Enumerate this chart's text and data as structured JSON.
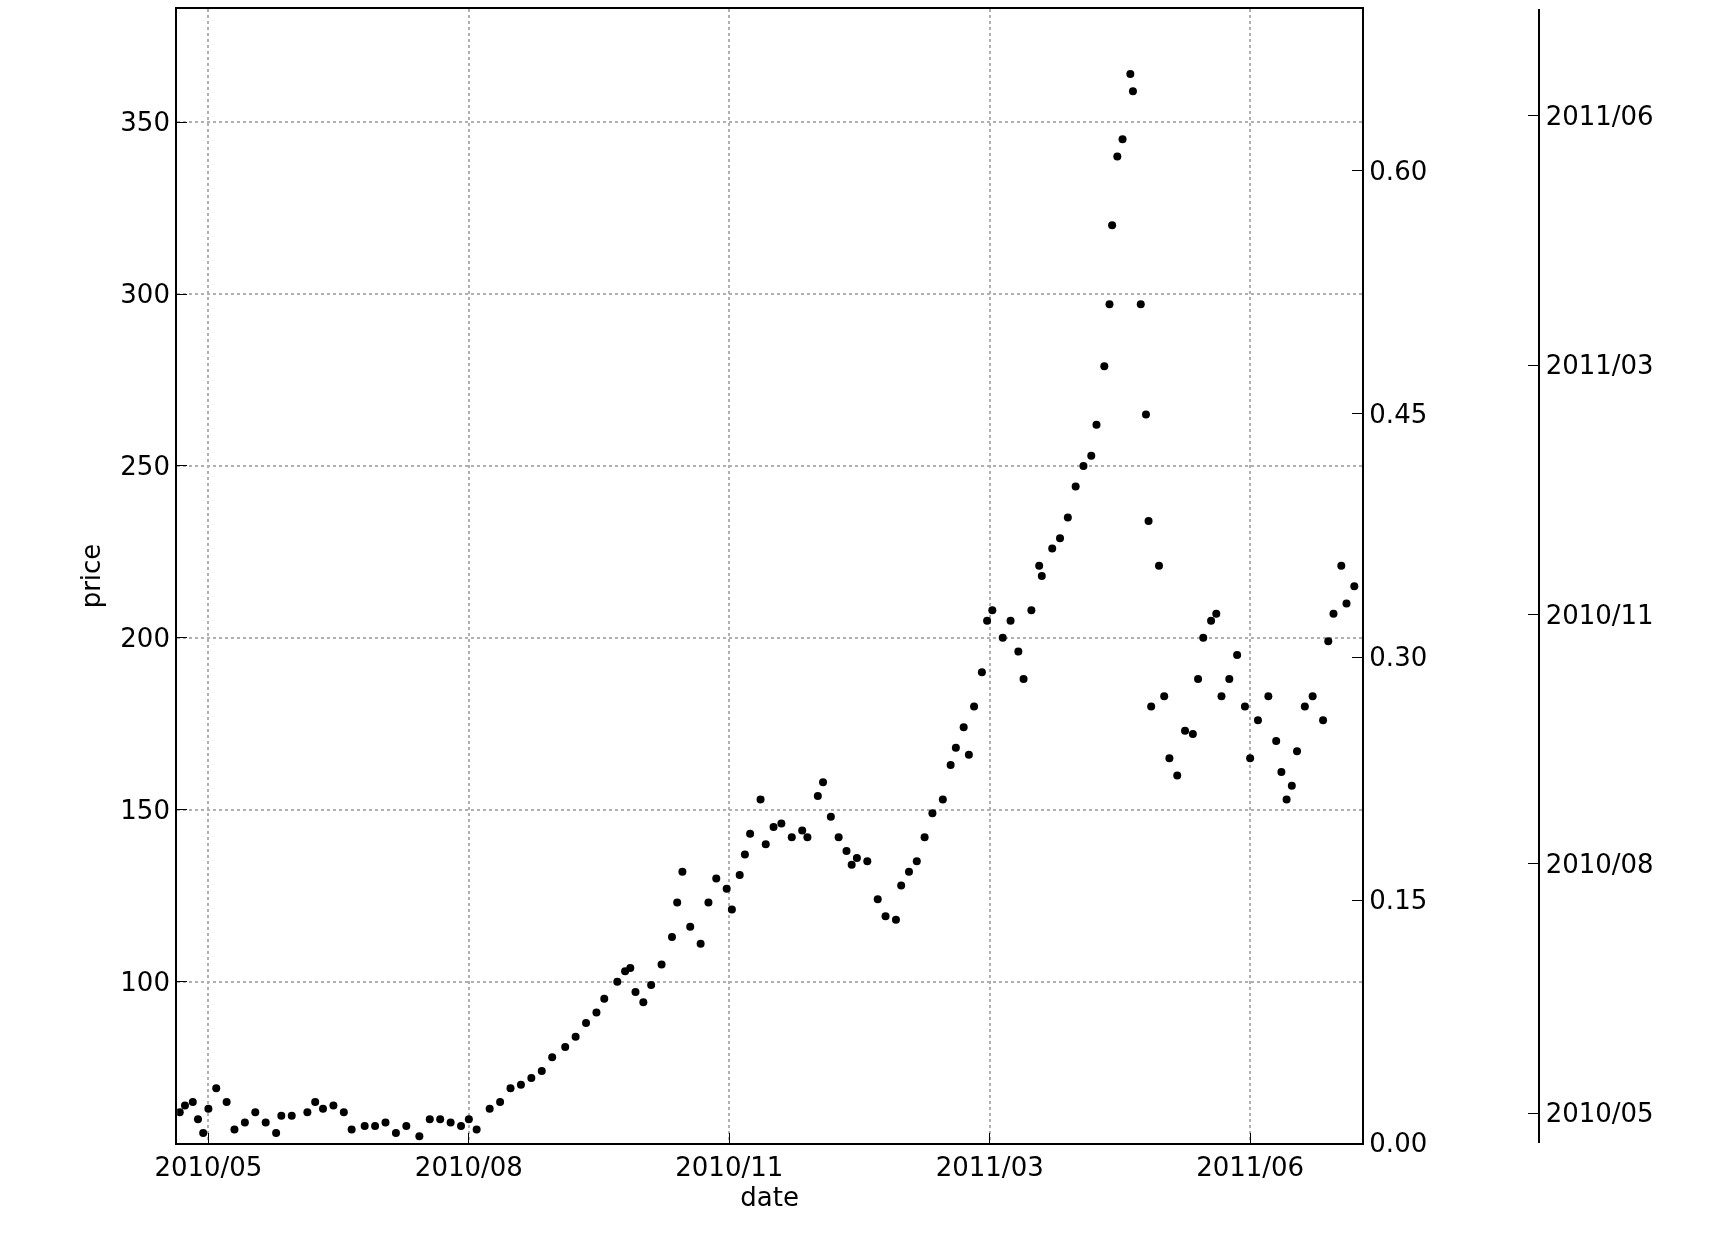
{
  "chart_data": {
    "type": "scatter",
    "xlabel": "date",
    "ylabel": "price",
    "xlim": [
      "2010-04-26",
      "2011-07-25"
    ],
    "xticks": [
      {
        "value": "2010-05-08",
        "label": "2010/05"
      },
      {
        "value": "2010-08-16",
        "label": "2010/08"
      },
      {
        "value": "2010-11-24",
        "label": "2010/11"
      },
      {
        "value": "2011-03-04",
        "label": "2011/03"
      },
      {
        "value": "2011-06-12",
        "label": "2011/06"
      }
    ],
    "ylim": [
      53,
      383
    ],
    "yticks": [
      100,
      150,
      200,
      250,
      300,
      350
    ],
    "y2lim": [
      0,
      0.7
    ],
    "y2ticks": [
      {
        "value": 0,
        "label": "0.00"
      },
      {
        "value": 0.15,
        "label": "0.15"
      },
      {
        "value": 0.3,
        "label": "0.30"
      },
      {
        "value": 0.45,
        "label": "0.45"
      },
      {
        "value": 0.6,
        "label": "0.60"
      }
    ],
    "y3lim": [
      "2010-04-26",
      "2011-07-25"
    ],
    "y3ticks": [
      {
        "value": "2010-05-08",
        "label": "2010/05"
      },
      {
        "value": "2010-08-16",
        "label": "2010/08"
      },
      {
        "value": "2010-11-24",
        "label": "2010/11"
      },
      {
        "value": "2011-03-04",
        "label": "2011/03"
      },
      {
        "value": "2011-06-12",
        "label": "2011/06"
      }
    ],
    "grid": true,
    "marker": "circle",
    "legend": false,
    "series": [
      {
        "color": "#000000",
        "x": [
          "2010-04-27",
          "2010-04-29",
          "2010-05-02",
          "2010-05-04",
          "2010-05-06",
          "2010-05-08",
          "2010-05-11",
          "2010-05-15",
          "2010-05-18",
          "2010-05-22",
          "2010-05-26",
          "2010-05-30",
          "2010-06-03",
          "2010-06-05",
          "2010-06-09",
          "2010-06-15",
          "2010-06-18",
          "2010-06-21",
          "2010-06-25",
          "2010-06-29",
          "2010-07-02",
          "2010-07-07",
          "2010-07-11",
          "2010-07-15",
          "2010-07-19",
          "2010-07-23",
          "2010-07-28",
          "2010-08-01",
          "2010-08-05",
          "2010-08-09",
          "2010-08-13",
          "2010-08-16",
          "2010-08-19",
          "2010-08-24",
          "2010-08-28",
          "2010-09-01",
          "2010-09-05",
          "2010-09-09",
          "2010-09-13",
          "2010-09-17",
          "2010-09-22",
          "2010-09-26",
          "2010-09-30",
          "2010-10-04",
          "2010-10-07",
          "2010-10-12",
          "2010-10-15",
          "2010-10-17",
          "2010-10-19",
          "2010-10-22",
          "2010-10-25",
          "2010-10-29",
          "2010-11-02",
          "2010-11-04",
          "2010-11-06",
          "2010-11-09",
          "2010-11-13",
          "2010-11-16",
          "2010-11-19",
          "2010-11-23",
          "2010-11-25",
          "2010-11-28",
          "2010-11-30",
          "2010-12-02",
          "2010-12-06",
          "2010-12-08",
          "2010-12-11",
          "2010-12-14",
          "2010-12-18",
          "2010-12-22",
          "2010-12-24",
          "2010-12-28",
          "2010-12-30",
          "2011-01-02",
          "2011-01-05",
          "2011-01-08",
          "2011-01-10",
          "2011-01-12",
          "2011-01-16",
          "2011-01-20",
          "2011-01-23",
          "2011-01-27",
          "2011-01-29",
          "2011-02-01",
          "2011-02-04",
          "2011-02-07",
          "2011-02-10",
          "2011-02-14",
          "2011-02-17",
          "2011-02-19",
          "2011-02-22",
          "2011-02-24",
          "2011-02-26",
          "2011-03-01",
          "2011-03-03",
          "2011-03-05",
          "2011-03-09",
          "2011-03-12",
          "2011-03-15",
          "2011-03-17",
          "2011-03-20",
          "2011-03-23",
          "2011-03-24",
          "2011-03-28",
          "2011-03-31",
          "2011-04-03",
          "2011-04-06",
          "2011-04-09",
          "2011-04-12",
          "2011-04-14",
          "2011-04-17",
          "2011-04-19",
          "2011-04-20",
          "2011-04-22",
          "2011-04-24",
          "2011-04-27",
          "2011-04-28",
          "2011-05-01",
          "2011-05-03",
          "2011-05-04",
          "2011-05-05",
          "2011-05-08",
          "2011-05-10",
          "2011-05-12",
          "2011-05-15",
          "2011-05-18",
          "2011-05-21",
          "2011-05-23",
          "2011-05-25",
          "2011-05-28",
          "2011-05-30",
          "2011-06-01",
          "2011-06-04",
          "2011-06-07",
          "2011-06-10",
          "2011-06-12",
          "2011-06-15",
          "2011-06-19",
          "2011-06-22",
          "2011-06-24",
          "2011-06-26",
          "2011-06-28",
          "2011-06-30",
          "2011-07-03",
          "2011-07-06",
          "2011-07-10",
          "2011-07-12",
          "2011-07-14",
          "2011-07-17",
          "2011-07-19",
          "2011-07-22"
        ],
        "values": [
          62,
          64,
          65,
          60,
          56,
          63,
          69,
          65,
          57,
          59,
          62,
          59,
          56,
          61,
          61,
          62,
          65,
          63,
          64,
          62,
          57,
          58,
          58,
          59,
          56,
          58,
          55,
          60,
          60,
          59,
          58,
          60,
          57,
          63,
          65,
          69,
          70,
          72,
          74,
          78,
          81,
          84,
          88,
          91,
          95,
          100,
          103,
          104,
          97,
          94,
          99,
          105,
          113,
          123,
          132,
          116,
          111,
          123,
          130,
          127,
          121,
          131,
          137,
          143,
          153,
          140,
          145,
          146,
          142,
          144,
          142,
          154,
          158,
          148,
          142,
          138,
          134,
          136,
          135,
          124,
          119,
          118,
          128,
          132,
          135,
          142,
          149,
          153,
          163,
          168,
          174,
          166,
          180,
          190,
          205,
          208,
          200,
          205,
          196,
          188,
          208,
          221,
          218,
          226,
          229,
          235,
          244,
          250,
          253,
          262,
          279,
          297,
          320,
          340,
          345,
          364,
          359,
          297,
          265,
          234,
          180,
          221,
          183,
          165,
          160,
          173,
          172,
          188,
          200,
          205,
          207,
          183,
          188,
          195,
          180,
          165,
          176,
          183,
          170,
          161,
          153,
          157,
          167,
          180,
          183,
          176,
          199,
          207,
          221,
          210,
          215
        ]
      }
    ]
  }
}
